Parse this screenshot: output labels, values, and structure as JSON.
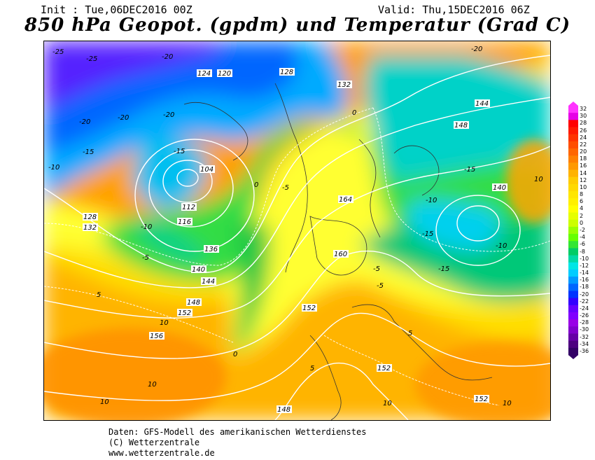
{
  "header": {
    "init": "Init : Tue,06DEC2016 00Z",
    "valid": "Valid: Thu,15DEC2016 06Z",
    "title": "850 hPa Geopot. (gpdm) und Temperatur (Grad C)"
  },
  "map": {
    "geopotential_labels": [
      "104",
      "112",
      "116",
      "120",
      "124",
      "128",
      "132",
      "136",
      "140",
      "144",
      "148",
      "152",
      "156",
      "160",
      "164"
    ],
    "temperature_labels": [
      "-25",
      "-20",
      "-15",
      "-10",
      "-5",
      "0",
      "5",
      "10"
    ]
  },
  "legend": {
    "values": [
      "32",
      "30",
      "28",
      "26",
      "24",
      "22",
      "20",
      "18",
      "16",
      "14",
      "12",
      "10",
      "8",
      "6",
      "4",
      "2",
      "0",
      "-2",
      "-4",
      "-6",
      "-8",
      "-10",
      "-12",
      "-14",
      "-16",
      "-18",
      "-20",
      "-22",
      "-24",
      "-26",
      "-28",
      "-30",
      "-32",
      "-34",
      "-36"
    ],
    "colors": [
      "#ff33ff",
      "#e600e6",
      "#ff0000",
      "#ff1a00",
      "#ff3300",
      "#ff4d00",
      "#ff6600",
      "#ff8000",
      "#ff9900",
      "#ffb300",
      "#ffcc00",
      "#ffd900",
      "#ffe600",
      "#fff000",
      "#ffff00",
      "#e6ff00",
      "#ccff00",
      "#99ff00",
      "#66ff00",
      "#33e633",
      "#00cc66",
      "#00d9a6",
      "#00e6e6",
      "#00ccff",
      "#0099ff",
      "#0066ff",
      "#0033ff",
      "#3300ff",
      "#6600ff",
      "#8000ff",
      "#9900e6",
      "#8000cc",
      "#6600a6",
      "#4d0080",
      "#330066"
    ]
  },
  "footer": {
    "line1": "Daten: GFS-Modell des amerikanischen Wetterdienstes",
    "line2": "(C) Wetterzentrale",
    "line3": "www.wetterzentrale.de"
  }
}
